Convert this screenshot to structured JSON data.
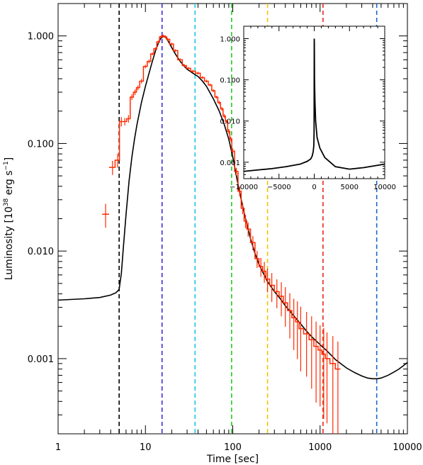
{
  "chart_data": [
    {
      "type": "line",
      "title": "",
      "xlabel": "Time [sec]",
      "ylabel": "Luminosity [10^38 erg s^-1]",
      "ylabel_parts": {
        "prefix": "Luminosity [10",
        "exp1": "38",
        "mid": " erg s",
        "exp2": "−1",
        "suffix": "]"
      },
      "xscale": "log",
      "yscale": "log",
      "xlim": [
        1,
        10000
      ],
      "ylim": [
        0.0002,
        2.0
      ],
      "x_ticks": [
        1,
        10,
        100,
        1000,
        10000
      ],
      "x_tick_labels": [
        "1",
        "10",
        "100",
        "1000",
        "10000"
      ],
      "y_ticks": [
        0.001,
        0.01,
        0.1,
        1.0
      ],
      "y_tick_labels": [
        "0.001",
        "0.010",
        "0.100",
        "1.000"
      ],
      "grid": false,
      "legend": "none",
      "series": [
        {
          "color": "#000000",
          "style": "solid",
          "x": [
            1,
            2,
            3,
            4,
            4.6,
            5.0,
            5.3,
            5.6,
            6.0,
            6.5,
            7,
            7.5,
            8,
            9,
            10,
            11,
            12,
            13,
            14,
            15,
            16,
            17,
            18,
            20,
            22,
            25,
            28,
            30,
            35,
            40,
            45,
            50,
            60,
            70,
            80,
            90,
            100,
            110,
            120,
            130,
            140,
            150,
            160,
            180,
            200,
            220,
            250,
            300,
            350,
            400,
            500,
            600,
            700,
            800,
            1000,
            1200,
            1500,
            2000,
            2500,
            3000,
            3500,
            4000,
            4500,
            5000,
            6000,
            7000,
            8000,
            9000,
            10000
          ],
          "y": [
            0.0035,
            0.0036,
            0.0037,
            0.0039,
            0.0041,
            0.0044,
            0.0062,
            0.011,
            0.022,
            0.045,
            0.075,
            0.11,
            0.15,
            0.24,
            0.34,
            0.45,
            0.58,
            0.72,
            0.85,
            0.95,
            0.99,
            0.97,
            0.91,
            0.78,
            0.68,
            0.58,
            0.52,
            0.49,
            0.45,
            0.42,
            0.38,
            0.34,
            0.26,
            0.2,
            0.15,
            0.11,
            0.075,
            0.05,
            0.035,
            0.026,
            0.02,
            0.016,
            0.013,
            0.0095,
            0.0075,
            0.0064,
            0.0052,
            0.0042,
            0.0036,
            0.0031,
            0.0025,
            0.0021,
            0.0018,
            0.0016,
            0.00135,
            0.00118,
            0.00098,
            0.00082,
            0.00074,
            0.00069,
            0.00066,
            0.00065,
            0.00065,
            0.00066,
            0.0007,
            0.00075,
            0.0008,
            0.00086,
            0.00092
          ]
        },
        {
          "color": "#ff2a00",
          "style": "histogram",
          "x": [
            3.5,
            4.2,
            4.8,
            5.3,
            5.8,
            6.4,
            7,
            7.6,
            8.2,
            9,
            10,
            11,
            12,
            13,
            14,
            15,
            16,
            17,
            18,
            20,
            22,
            25,
            28,
            31,
            35,
            40,
            45,
            50,
            55,
            60,
            65,
            70,
            75,
            80,
            85,
            90,
            95,
            100,
            110,
            120,
            130,
            140,
            150,
            170,
            190,
            210,
            230,
            250,
            280,
            320,
            360,
            400,
            450,
            500,
            550,
            600,
            700,
            800,
            900,
            1000,
            1100,
            1200,
            1400,
            1600
          ],
          "y": [
            0.022,
            0.06,
            0.07,
            0.16,
            0.16,
            0.17,
            0.27,
            0.3,
            0.33,
            0.38,
            0.52,
            0.58,
            0.68,
            0.76,
            0.88,
            0.98,
            1.0,
            0.98,
            0.93,
            0.84,
            0.73,
            0.6,
            0.53,
            0.5,
            0.47,
            0.45,
            0.41,
            0.38,
            0.35,
            0.31,
            0.27,
            0.24,
            0.21,
            0.18,
            0.16,
            0.13,
            0.11,
            0.085,
            0.055,
            0.036,
            0.025,
            0.019,
            0.016,
            0.012,
            0.0085,
            0.0072,
            0.0065,
            0.0055,
            0.0048,
            0.0042,
            0.0038,
            0.0033,
            0.0028,
            0.0024,
            0.0022,
            0.0019,
            0.0017,
            0.0015,
            0.0013,
            0.0012,
            0.0011,
            0.001,
            0.0009,
            0.0008
          ],
          "err_frac": [
            0.25,
            0.15,
            0.15,
            0.1,
            0.08,
            0.08,
            0.06,
            0.06,
            0.05,
            0.05,
            0.04,
            0.04,
            0.03,
            0.03,
            0.03,
            0.03,
            0.03,
            0.03,
            0.03,
            0.03,
            0.03,
            0.03,
            0.03,
            0.03,
            0.03,
            0.03,
            0.03,
            0.03,
            0.03,
            0.03,
            0.03,
            0.04,
            0.04,
            0.04,
            0.04,
            0.05,
            0.05,
            0.06,
            0.08,
            0.1,
            0.12,
            0.14,
            0.15,
            0.15,
            0.18,
            0.2,
            0.22,
            0.25,
            0.3,
            0.3,
            0.35,
            0.4,
            0.45,
            0.5,
            0.55,
            0.6,
            0.6,
            0.65,
            0.7,
            0.7,
            0.75,
            0.75,
            0.8,
            0.8
          ]
        }
      ],
      "vertical_lines": [
        {
          "x": 5.0,
          "color": "#000000"
        },
        {
          "x": 15.5,
          "color": "#3a2cd6"
        },
        {
          "x": 37,
          "color": "#1cc6e6"
        },
        {
          "x": 97,
          "color": "#22cc22"
        },
        {
          "x": 250,
          "color": "#f2c200"
        },
        {
          "x": 1080,
          "color": "#e8281c"
        },
        {
          "x": 4450,
          "color": "#1e64c8"
        }
      ]
    },
    {
      "type": "line",
      "title": "",
      "xlabel": "",
      "ylabel": "",
      "xscale": "linear",
      "yscale": "log",
      "xlim": [
        -10000,
        10000
      ],
      "ylim": [
        0.0004,
        2.0
      ],
      "x_ticks": [
        -10000,
        -5000,
        0,
        5000,
        10000
      ],
      "x_tick_labels": [
        "−10000",
        "−5000",
        "0",
        "5000",
        "10000"
      ],
      "y_ticks": [
        0.001,
        0.01,
        0.1,
        1.0
      ],
      "y_tick_labels": [
        "0.001",
        "0.010",
        "0.100",
        "1.000"
      ],
      "legend_position": "top-right",
      "series": [
        {
          "color": "#000000",
          "x": [
            -10000,
            -8000,
            -6000,
            -4000,
            -2000,
            -1000,
            -500,
            -300,
            -150,
            -60,
            -20,
            0,
            15,
            40,
            100,
            200,
            400,
            800,
            1500,
            3000,
            5000,
            7000,
            10000
          ],
          "y": [
            0.0006,
            0.00065,
            0.0007,
            0.00078,
            0.0009,
            0.00105,
            0.0012,
            0.0014,
            0.0018,
            0.0025,
            0.006,
            1.0,
            0.8,
            0.1,
            0.03,
            0.01,
            0.004,
            0.0022,
            0.0013,
            0.00078,
            0.00068,
            0.00074,
            0.0009
          ]
        }
      ]
    }
  ]
}
